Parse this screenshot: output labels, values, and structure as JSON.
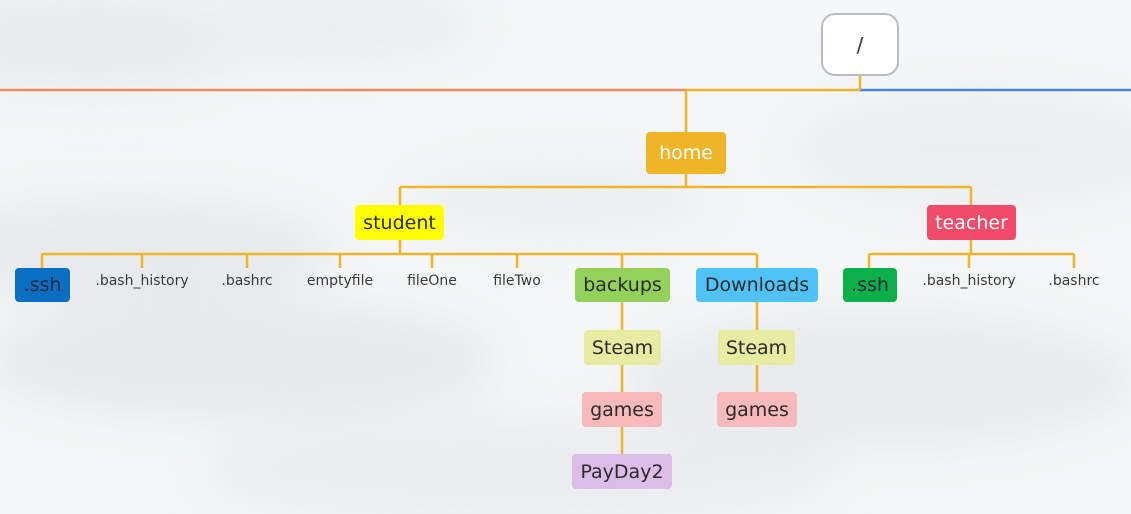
{
  "colors": {
    "branch_left": "#f08a5d",
    "branch_main": "#f0b429",
    "branch_right": "#4a86d4",
    "root_border": "#b9bcc0",
    "home": "#f0b429",
    "student": "#ffff00",
    "teacher": "#f24a6a",
    "ssh_student": "#0a6fc2",
    "ssh_teacher": "#0cb04a",
    "backups": "#93d15a",
    "downloads": "#4fc3f7",
    "steam": "#e6eca2",
    "games": "#f7b9b9",
    "payday": "#dcbde8"
  },
  "tree": {
    "root": "/",
    "home": "home",
    "student": {
      "label": "student",
      "children": [
        ".ssh",
        ".bash_history",
        ".bashrc",
        "emptyfile",
        "fileOne",
        "fileTwo",
        "backups",
        "Downloads"
      ],
      "backups": {
        "steam": "Steam",
        "games": "games",
        "payday": "PayDay2"
      },
      "downloads": {
        "steam": "Steam",
        "games": "games"
      }
    },
    "teacher": {
      "label": "teacher",
      "children": [
        ".ssh",
        ".bash_history",
        ".bashrc"
      ]
    }
  }
}
